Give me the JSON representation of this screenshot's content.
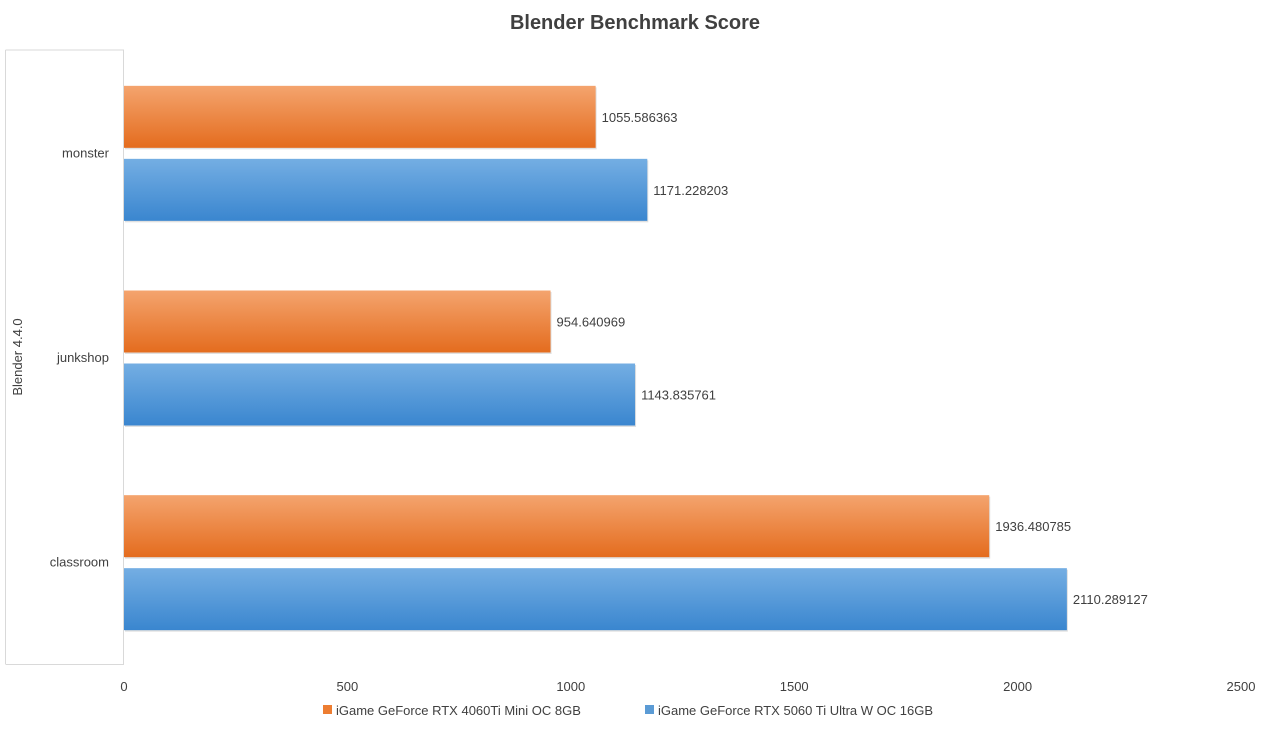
{
  "chart_data": {
    "type": "bar",
    "orientation": "horizontal",
    "title": "Blender Benchmark Score",
    "group_label": "Blender 4.4.0",
    "categories": [
      "monster",
      "junkshop",
      "classroom"
    ],
    "series": [
      {
        "name": "iGame GeForce RTX 4060Ti Mini OC 8GB",
        "color": "#ED7D31",
        "values": [
          1055.586363,
          954.640969,
          1936.480785
        ],
        "labels": [
          "1055.586363",
          "954.640969",
          "1936.480785"
        ]
      },
      {
        "name": "iGame GeForce RTX 5060 Ti Ultra W OC 16GB",
        "color": "#5B9BD5",
        "values": [
          1171.228203,
          1143.835761,
          2110.289127
        ],
        "labels": [
          "1171.228203",
          "1143.835761",
          "2110.289127"
        ]
      }
    ],
    "xlim": [
      0,
      2500
    ],
    "xticks": [
      "0",
      "500",
      "1000",
      "1500",
      "2000",
      "2500"
    ],
    "grid": false,
    "legend_position": "bottom"
  }
}
